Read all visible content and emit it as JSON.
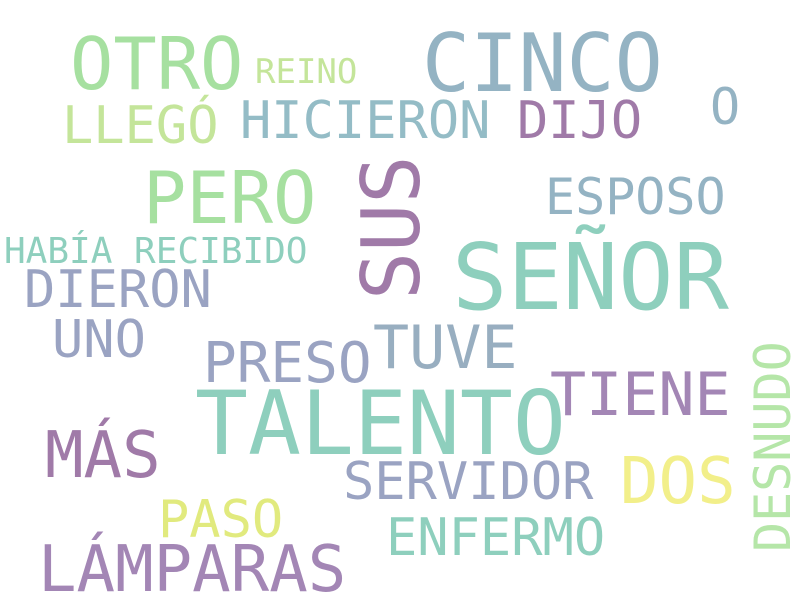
{
  "words": [
    {
      "text": "SEÑOR",
      "color": "#8ecfbd"
    },
    {
      "text": "TALENTO",
      "color": "#8ecfbd"
    },
    {
      "text": "CINCO",
      "color": "#94b3c3"
    },
    {
      "text": "SUS",
      "color": "#a07aa8"
    },
    {
      "text": "PERO",
      "color": "#a6e0a0"
    },
    {
      "text": "OTRO",
      "color": "#a6e0a0"
    },
    {
      "text": "LÁMPARAS",
      "color": "#a386b5"
    },
    {
      "text": "MÁS",
      "color": "#a07aa8"
    },
    {
      "text": "DOS",
      "color": "#f2ef8a"
    },
    {
      "text": "TIENE",
      "color": "#a386b5"
    },
    {
      "text": "TUVE",
      "color": "#98aec0"
    },
    {
      "text": "PRESO",
      "color": "#9aa3c2"
    },
    {
      "text": "SERVIDOR",
      "color": "#9aa3c2"
    },
    {
      "text": "ENFERMO",
      "color": "#8ecfbd"
    },
    {
      "text": "PASO",
      "color": "#e1ea7e"
    },
    {
      "text": "DIERON",
      "color": "#9aa3c2"
    },
    {
      "text": "UNO",
      "color": "#9aa3c2"
    },
    {
      "text": "ESPOSO",
      "color": "#94b3c3"
    },
    {
      "text": "HICIERON",
      "color": "#94bcc6"
    },
    {
      "text": "DIJO",
      "color": "#a07aa8"
    },
    {
      "text": "LLEGÓ",
      "color": "#c4e59a"
    },
    {
      "text": "O",
      "color": "#94b3c3"
    },
    {
      "text": "DESNUDO",
      "color": "#b5e6a8"
    },
    {
      "text": "HABÍA RECIBIDO",
      "color": "#8ecfbd"
    },
    {
      "text": "REINO",
      "color": "#c4e59a"
    }
  ]
}
